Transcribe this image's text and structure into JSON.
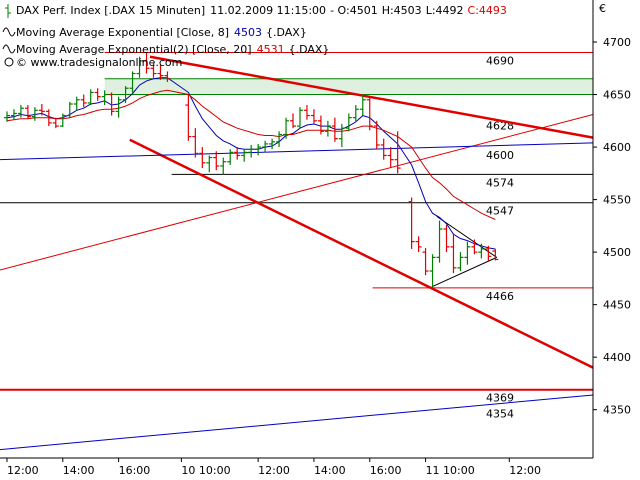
{
  "chart_data": {
    "type": "ohlc",
    "title": "DAX Perf. Index [.DAX  15 Minuten]",
    "subtitle": "11.02.2009 11:15:00",
    "quote": [
      "- O:4501",
      "H:4503",
      "L:4492"
    ],
    "close_label": "C:4493",
    "source": "© www.tradesignalonline.com",
    "currency": "€",
    "up_color": "#008000",
    "down_color": "#e00000",
    "xlim": [
      -1,
      84
    ],
    "ylim": [
      4304,
      4740
    ],
    "yticks": [
      4350,
      4400,
      4450,
      4500,
      4550,
      4600,
      4650,
      4700
    ],
    "xticks": [
      {
        "value": 0,
        "label": "12:00"
      },
      {
        "value": 8,
        "label": "14:00"
      },
      {
        "value": 16,
        "label": "16:00"
      },
      {
        "value": 25,
        "label": "10 10:00"
      },
      {
        "value": 36,
        "label": "12:00"
      },
      {
        "value": 44,
        "label": "14:00"
      },
      {
        "value": 52,
        "label": "16:00"
      },
      {
        "value": 60,
        "label": "11 10:00"
      },
      {
        "value": 72,
        "label": "12:00"
      }
    ],
    "x": [
      0,
      1,
      2,
      3,
      4,
      5,
      6,
      7,
      8,
      9,
      10,
      11,
      12,
      13,
      14,
      15,
      16,
      17,
      18,
      19,
      20,
      21,
      22,
      23,
      26,
      27,
      28,
      29,
      30,
      31,
      32,
      33,
      34,
      35,
      36,
      37,
      38,
      39,
      40,
      41,
      42,
      43,
      44,
      45,
      46,
      47,
      48,
      49,
      50,
      51,
      52,
      53,
      54,
      55,
      56,
      58,
      59,
      60,
      61,
      62,
      63,
      64,
      65,
      66,
      67,
      68,
      69,
      70
    ],
    "open": [
      4628,
      4630,
      4632,
      4637,
      4629,
      4635,
      4634,
      4623,
      4620,
      4630,
      4641,
      4645,
      4642,
      4652,
      4648,
      4650,
      4634,
      4645,
      4656,
      4670,
      4682,
      4675,
      4670,
      4668,
      4640,
      4610,
      4594,
      4585,
      4590,
      4582,
      4586,
      4595,
      4592,
      4595,
      4598,
      4600,
      4603,
      4605,
      4612,
      4625,
      4620,
      4635,
      4630,
      4625,
      4615,
      4620,
      4608,
      4618,
      4628,
      4636,
      4645,
      4620,
      4602,
      4592,
      4588,
      4548,
      4510,
      4500,
      4482,
      4495,
      4522,
      4505,
      4485,
      4495,
      4505,
      4500,
      4503,
      4501
    ],
    "high": [
      4634,
      4636,
      4640,
      4640,
      4638,
      4641,
      4636,
      4628,
      4632,
      4643,
      4648,
      4650,
      4655,
      4656,
      4654,
      4652,
      4648,
      4658,
      4672,
      4686,
      4690,
      4680,
      4678,
      4672,
      4650,
      4618,
      4600,
      4592,
      4596,
      4590,
      4598,
      4600,
      4598,
      4602,
      4603,
      4606,
      4608,
      4615,
      4628,
      4632,
      4638,
      4640,
      4636,
      4630,
      4625,
      4628,
      4622,
      4632,
      4640,
      4650,
      4648,
      4625,
      4608,
      4600,
      4615,
      4552,
      4515,
      4504,
      4498,
      4530,
      4526,
      4518,
      4500,
      4510,
      4512,
      4508,
      4506,
      4503
    ],
    "low": [
      4624,
      4626,
      4628,
      4627,
      4625,
      4630,
      4620,
      4618,
      4619,
      4628,
      4635,
      4638,
      4640,
      4644,
      4640,
      4630,
      4628,
      4642,
      4652,
      4666,
      4670,
      4666,
      4664,
      4662,
      4606,
      4590,
      4580,
      4576,
      4578,
      4574,
      4583,
      4588,
      4586,
      4590,
      4592,
      4595,
      4598,
      4600,
      4608,
      4618,
      4618,
      4626,
      4622,
      4612,
      4610,
      4605,
      4600,
      4615,
      4624,
      4630,
      4616,
      4598,
      4588,
      4580,
      4575,
      4503,
      4500,
      4478,
      4466,
      4490,
      4500,
      4480,
      4482,
      4488,
      4498,
      4494,
      4492,
      4492
    ],
    "close": [
      4630,
      4632,
      4637,
      4629,
      4635,
      4634,
      4623,
      4620,
      4630,
      4641,
      4645,
      4642,
      4652,
      4648,
      4650,
      4634,
      4645,
      4656,
      4670,
      4682,
      4675,
      4670,
      4668,
      4665,
      4610,
      4594,
      4585,
      4590,
      4582,
      4586,
      4595,
      4592,
      4595,
      4598,
      4600,
      4603,
      4605,
      4612,
      4625,
      4620,
      4635,
      4630,
      4625,
      4615,
      4620,
      4608,
      4618,
      4628,
      4636,
      4645,
      4620,
      4602,
      4592,
      4588,
      4580,
      4510,
      4505,
      4482,
      4495,
      4522,
      4505,
      4485,
      4495,
      4505,
      4500,
      4503,
      4496,
      4493
    ],
    "indicators": [
      {
        "name": "Moving Average Exponential [Close, 8]",
        "suffix": "{.DAX}",
        "color": "#0000b0",
        "values": [
          4628,
          4629,
          4631,
          4630,
          4631,
          4632,
          4629,
          4627,
          4628,
          4631,
          4635,
          4637,
          4641,
          4642,
          4644,
          4640,
          4641,
          4645,
          4651,
          4659,
          4663,
          4665,
          4666,
          4666,
          4652,
          4639,
          4627,
          4619,
          4611,
          4606,
          4603,
          4599,
          4598,
          4598,
          4598,
          4600,
          4601,
          4605,
          4611,
          4613,
          4618,
          4621,
          4622,
          4620,
          4620,
          4617,
          4617,
          4620,
          4624,
          4630,
          4628,
          4622,
          4615,
          4609,
          4603,
          4583,
          4566,
          4548,
          4537,
          4533,
          4527,
          4517,
          4513,
          4511,
          4508,
          4506,
          4504,
          4503
        ]
      },
      {
        "name": "Moving Average Exponential(2) [Close, 20]",
        "suffix": "{.DAX}",
        "color": "#d00000",
        "values": [
          4625,
          4626,
          4627,
          4627,
          4628,
          4628,
          4628,
          4627,
          4627,
          4628,
          4630,
          4631,
          4633,
          4635,
          4636,
          4636,
          4637,
          4639,
          4642,
          4646,
          4649,
          4651,
          4653,
          4654,
          4650,
          4645,
          4639,
          4634,
          4629,
          4624,
          4621,
          4618,
          4616,
          4614,
          4612,
          4611,
          4611,
          4610,
          4612,
          4612,
          4614,
          4616,
          4616,
          4616,
          4616,
          4615,
          4615,
          4616,
          4618,
          4620,
          4620,
          4618,
          4616,
          4613,
          4610,
          4600,
          4590,
          4580,
          4571,
          4566,
          4560,
          4553,
          4549,
          4545,
          4541,
          4537,
          4534,
          4531
        ]
      }
    ],
    "trendlines": [
      {
        "x": [
          20.5,
          84
        ],
        "y": [
          4686,
          4609
        ],
        "color": "#e00000",
        "width": 2.5
      },
      {
        "x": [
          17.6,
          84
        ],
        "y": [
          4607,
          4390
        ],
        "color": "#e00000",
        "width": 2.5
      },
      {
        "x": [
          -1,
          84
        ],
        "y": [
          4483,
          4631
        ],
        "color": "#e00000",
        "width": 1
      },
      {
        "x": [
          -1,
          84
        ],
        "y": [
          4588,
          4604
        ],
        "color": "#0000c0",
        "width": 1
      },
      {
        "x": [
          -1,
          84
        ],
        "y": [
          4312,
          4364
        ],
        "color": "#0000c0",
        "width": 1
      },
      {
        "x": [
          61.6,
          70.2
        ],
        "y": [
          4534,
          4495
        ],
        "color": "#000000",
        "width": 1
      },
      {
        "x": [
          60.9,
          70.2
        ],
        "y": [
          4467,
          4495
        ],
        "color": "#000000",
        "width": 1
      }
    ],
    "band": {
      "range": [
        4650,
        4665
      ],
      "from": 14,
      "color": "#008000"
    },
    "levels": [
      {
        "value": 4690,
        "color": "#e00000",
        "from": 14
      },
      {
        "value": 4628,
        "color": "#e00000",
        "from": null
      },
      {
        "value": 4600,
        "color": "#0000c0",
        "from": null
      },
      {
        "value": 4574,
        "color": "#000000",
        "from": 23.6
      },
      {
        "value": 4547,
        "color": "#000000",
        "from": -1
      },
      {
        "value": 4466,
        "color": "#e00000",
        "from": 52.4
      },
      {
        "value": 4369,
        "color": "#e00000",
        "from": -1
      },
      {
        "value": 4354,
        "color": "#0000c0",
        "from": null
      }
    ]
  }
}
